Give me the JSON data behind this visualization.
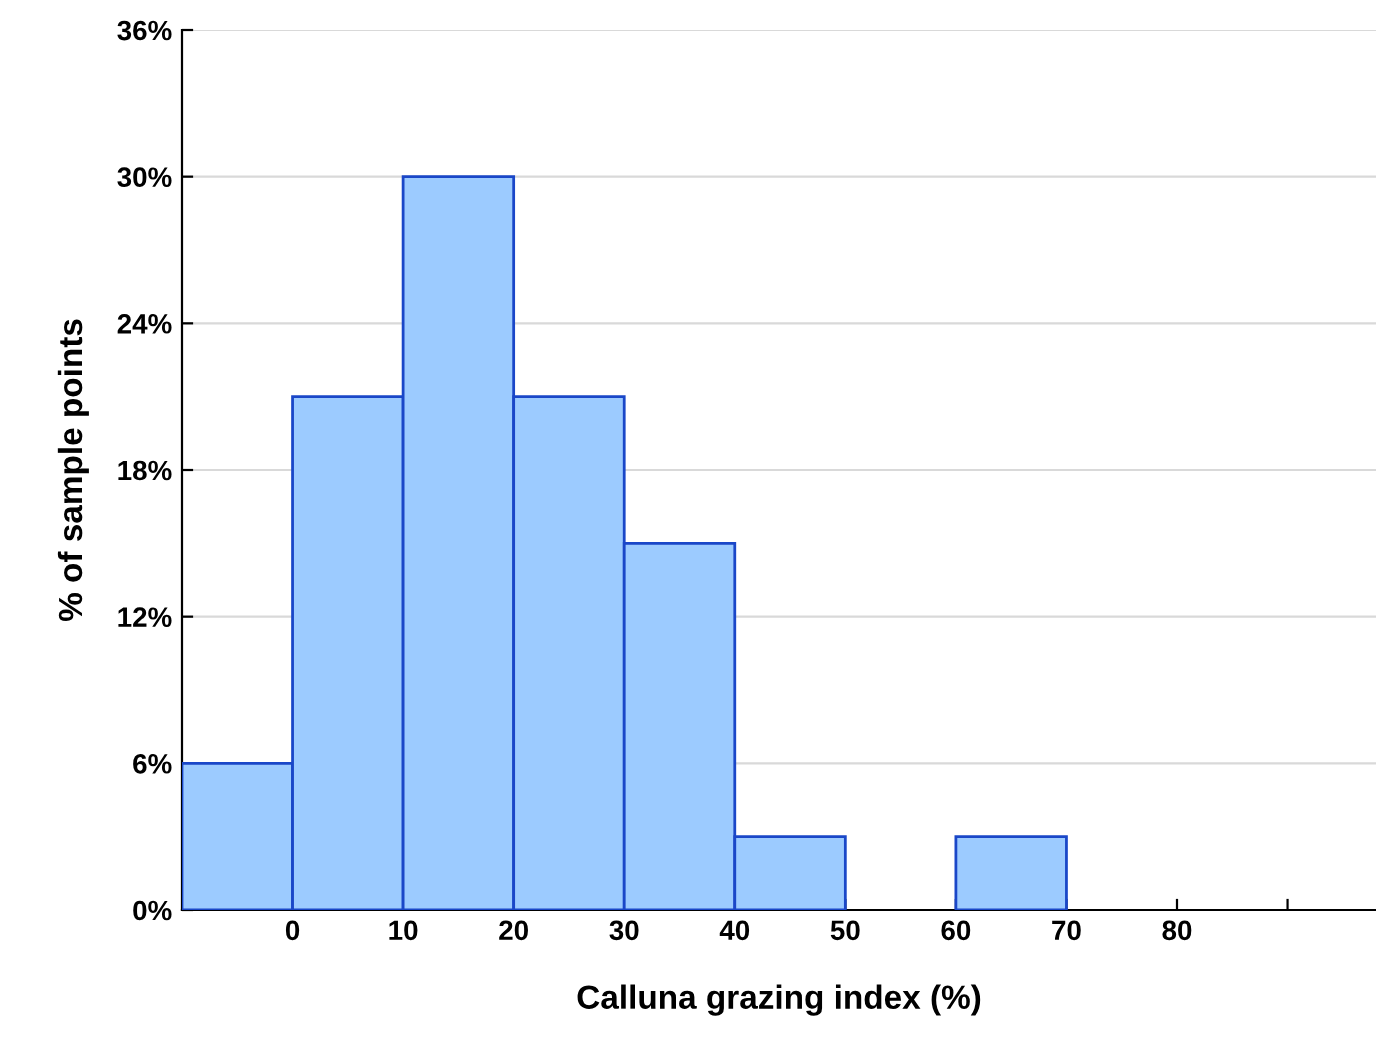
{
  "chart_data": {
    "type": "histogram",
    "xlabel": "Calluna grazing index (%)",
    "ylabel": "% of sample points",
    "bins": [
      -10,
      0,
      10,
      20,
      30,
      40,
      50,
      60,
      70
    ],
    "values": [
      6,
      21,
      30,
      21,
      15,
      3,
      0,
      3
    ],
    "color": "#9ccbff",
    "xlim": [
      -10,
      98
    ],
    "xticks": [
      0,
      10,
      20,
      30,
      40,
      50,
      60,
      70,
      80,
      {
        "value": 90,
        "label": null
      }
    ],
    "ylim": [
      0,
      36
    ],
    "yticks": [
      {
        "value": 0,
        "label": "0%"
      },
      {
        "value": 6,
        "label": "6%"
      },
      {
        "value": 12,
        "label": "12%"
      },
      {
        "value": 18,
        "label": "18%"
      },
      {
        "value": 24,
        "label": "24%"
      },
      {
        "value": 30,
        "label": "30%"
      },
      {
        "value": 36,
        "label": "36%"
      }
    ],
    "grid": "y"
  }
}
